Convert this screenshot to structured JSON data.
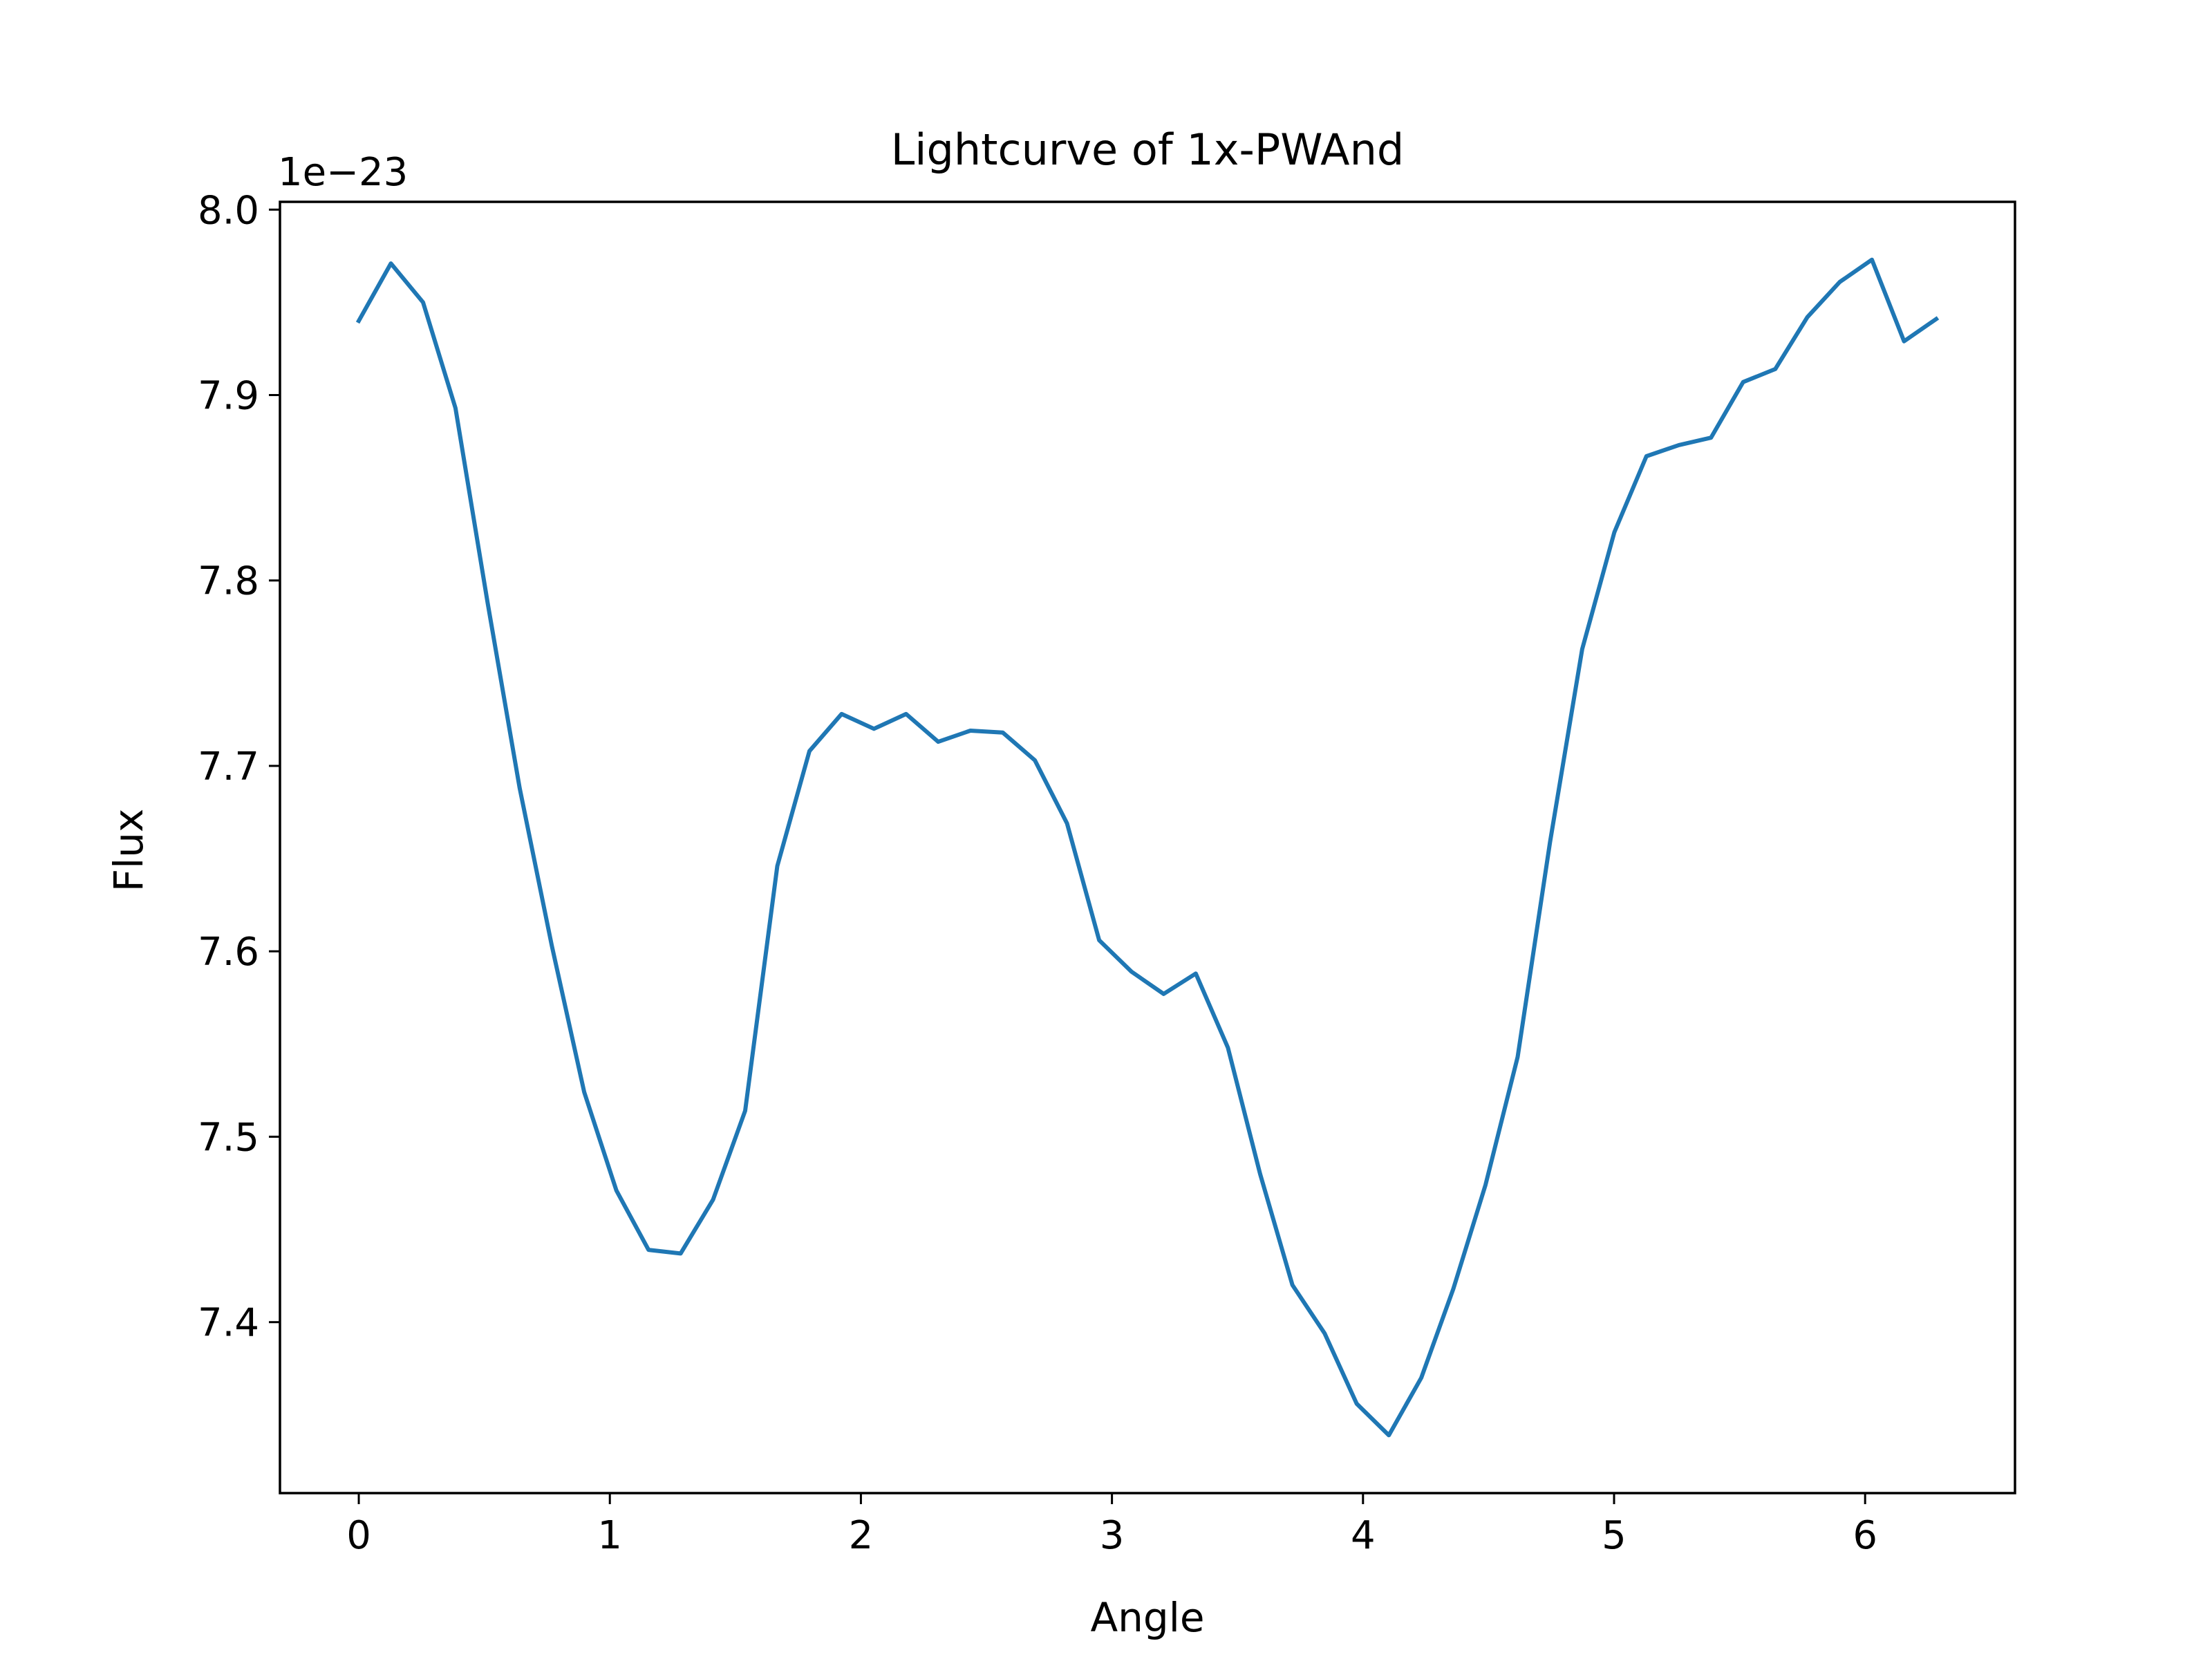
{
  "chart_data": {
    "type": "line",
    "title": "Lightcurve of 1x-PWAnd",
    "xlabel": "Angle",
    "ylabel": "Flux",
    "offset_label": "1e−23",
    "xlim": [
      -0.314,
      6.597
    ],
    "ylim": [
      7.3078,
      8.0042
    ],
    "xticks": [
      0,
      1,
      2,
      3,
      4,
      5,
      6
    ],
    "xtick_labels": [
      "0",
      "1",
      "2",
      "3",
      "4",
      "5",
      "6"
    ],
    "yticks": [
      7.4,
      7.5,
      7.6,
      7.7,
      7.8,
      7.9,
      8.0
    ],
    "ytick_labels": [
      "7.4",
      "7.5",
      "7.6",
      "7.7",
      "7.8",
      "7.9",
      "8.0"
    ],
    "grid": false,
    "series": [
      {
        "color": "#1f77b4",
        "x": [
          0.0,
          0.128,
          0.256,
          0.385,
          0.513,
          0.641,
          0.769,
          0.898,
          1.026,
          1.154,
          1.282,
          1.411,
          1.539,
          1.667,
          1.795,
          1.923,
          2.052,
          2.18,
          2.308,
          2.436,
          2.565,
          2.693,
          2.821,
          2.949,
          3.078,
          3.206,
          3.334,
          3.462,
          3.59,
          3.719,
          3.847,
          3.975,
          4.103,
          4.232,
          4.36,
          4.488,
          4.616,
          4.745,
          4.873,
          5.001,
          5.129,
          5.258,
          5.386,
          5.514,
          5.642,
          5.77,
          5.899,
          6.027,
          6.155,
          6.283
        ],
        "y": [
          7.94,
          7.971,
          7.95,
          7.893,
          7.788,
          7.688,
          7.603,
          7.524,
          7.471,
          7.439,
          7.437,
          7.466,
          7.514,
          7.646,
          7.708,
          7.728,
          7.72,
          7.728,
          7.713,
          7.719,
          7.718,
          7.703,
          7.669,
          7.606,
          7.589,
          7.577,
          7.588,
          7.548,
          7.48,
          7.42,
          7.394,
          7.356,
          7.339,
          7.37,
          7.418,
          7.474,
          7.543,
          7.659,
          7.763,
          7.826,
          7.867,
          7.873,
          7.877,
          7.907,
          7.914,
          7.942,
          7.961,
          7.973,
          7.929,
          7.941
        ]
      }
    ]
  }
}
